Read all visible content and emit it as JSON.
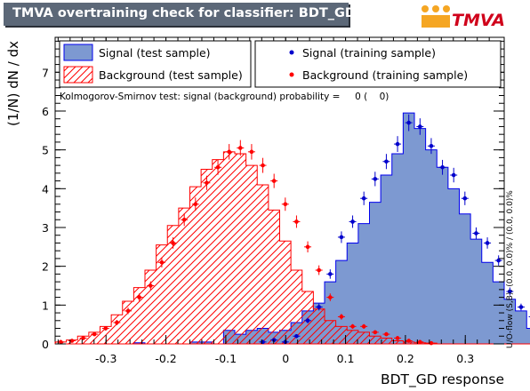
{
  "title": "TMVA overtraining check for classifier: BDT_GD",
  "logo_text": "TMVA",
  "colors": {
    "title_bg": "#5c6878",
    "signal_fill": "#7d99d1",
    "signal_line": "#0000ee",
    "background_hatch": "#ff0000",
    "background_points": "#ff0000",
    "signal_points": "#0000cc",
    "logo_orange": "#f5a623",
    "logo_red": "#d0021b"
  },
  "chart_data": {
    "type": "histogram",
    "xlabel": "BDT_GD response",
    "ylabel": "(1/N) dN / dx",
    "xlim": [
      -0.385,
      0.365
    ],
    "ylim": [
      0,
      7.9
    ],
    "xticks": [
      "-0.3",
      "-0.2",
      "-0.1",
      "0",
      "0.1",
      "0.2",
      "0.3"
    ],
    "xtick_values": [
      -0.3,
      -0.2,
      -0.1,
      0,
      0.1,
      0.2,
      0.3
    ],
    "yticks": [
      "0",
      "1",
      "2",
      "3",
      "4",
      "5",
      "6",
      "7"
    ],
    "ytick_values": [
      0,
      1,
      2,
      3,
      4,
      5,
      6,
      7
    ],
    "bin_edges_start": -0.385,
    "bin_width": 0.01875,
    "series": [
      {
        "name": "Signal (test sample)",
        "kind": "filled-histogram",
        "values": [
          0,
          0,
          0,
          0,
          0,
          0,
          0,
          0.03,
          0,
          0,
          0,
          0,
          0.05,
          0.05,
          0,
          0.35,
          0.25,
          0.35,
          0.4,
          0.3,
          0.35,
          0.55,
          0.85,
          1.05,
          1.6,
          2.15,
          2.6,
          3.1,
          3.65,
          4.35,
          4.9,
          5.95,
          5.55,
          5.0,
          4.55,
          4.0,
          3.35,
          2.7,
          2.1,
          1.6,
          1.15,
          0.85,
          0.4,
          0.2,
          0.2,
          0.15,
          0.1,
          0.05,
          0.05,
          0.03
        ]
      },
      {
        "name": "Background (test sample)",
        "kind": "hatched-histogram",
        "values": [
          0.05,
          0.1,
          0.2,
          0.3,
          0.45,
          0.75,
          1.1,
          1.45,
          1.9,
          2.55,
          3.05,
          3.5,
          4.05,
          4.5,
          4.75,
          4.95,
          4.9,
          4.6,
          4.1,
          3.45,
          2.65,
          1.9,
          1.35,
          0.9,
          0.6,
          0.45,
          0.35,
          0.3,
          0.2,
          0.15,
          0.08,
          0.05,
          0.03,
          0.02,
          0,
          0,
          0,
          0,
          0,
          0,
          0,
          0,
          0,
          0,
          0,
          0,
          0,
          0,
          0,
          0
        ]
      },
      {
        "name": "Signal (training sample)",
        "kind": "points",
        "values": [
          0,
          0,
          0,
          0,
          0,
          0,
          0,
          0,
          0,
          0,
          0,
          0,
          0,
          0,
          0,
          0,
          0,
          0,
          0.05,
          0.1,
          0.05,
          0.2,
          0.6,
          0.95,
          1.8,
          2.75,
          3.15,
          3.75,
          4.25,
          4.7,
          5.15,
          5.7,
          5.6,
          5.1,
          4.55,
          4.35,
          3.75,
          2.85,
          2.6,
          2.15,
          1.35,
          0.95,
          0.7,
          0.25,
          0.2,
          0.15,
          0.1,
          0.05,
          0.05,
          0.03
        ]
      },
      {
        "name": "Background (training sample)",
        "kind": "points",
        "values": [
          0.05,
          0.08,
          0.15,
          0.25,
          0.4,
          0.55,
          0.85,
          1.2,
          1.5,
          2.1,
          2.6,
          3.2,
          3.6,
          4.15,
          4.55,
          4.95,
          5.05,
          4.95,
          4.6,
          4.2,
          3.6,
          3.15,
          2.5,
          1.9,
          1.2,
          0.7,
          0.45,
          0.45,
          0.3,
          0.25,
          0.15,
          0.08,
          0.05,
          0.02,
          0,
          0,
          0,
          0,
          0,
          0,
          0,
          0,
          0,
          0,
          0,
          0,
          0,
          0,
          0,
          0
        ]
      }
    ],
    "legend": [
      "Signal (test sample)",
      "Signal (training sample)",
      "Background (test sample)",
      "Background (training sample)"
    ],
    "ks_text": "Kolmogorov-Smirnov test: signal (background) probability =     0 (    0)",
    "side_text": "U/O-flow (S,B): (0.0, 0.0)% / (0.0, 0.0)%"
  }
}
